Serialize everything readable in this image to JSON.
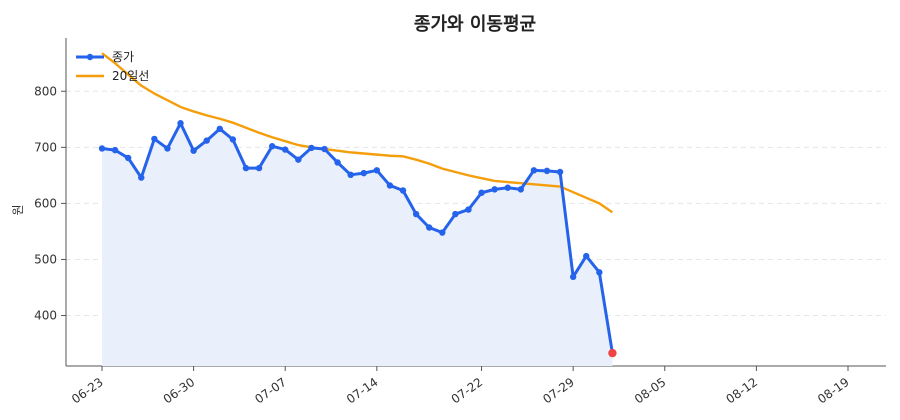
{
  "chart_data": {
    "type": "line",
    "title": "종가와 이동평균",
    "xlabel": "",
    "ylabel": "원",
    "ylim": [
      310,
      895
    ],
    "yticks": [
      400,
      500,
      600,
      700,
      800
    ],
    "x": [
      "06-23",
      "06-24",
      "06-25",
      "06-26",
      "06-27",
      "06-28",
      "06-29",
      "06-30",
      "07-01",
      "07-02",
      "07-03",
      "07-04",
      "07-05",
      "07-06",
      "07-07",
      "07-08",
      "07-09",
      "07-10",
      "07-11",
      "07-12",
      "07-13",
      "07-14",
      "07-15",
      "07-16",
      "07-17",
      "07-18",
      "07-19",
      "07-20",
      "07-21",
      "07-22",
      "07-23",
      "07-24",
      "07-25",
      "07-26",
      "07-27",
      "07-28",
      "07-29",
      "07-30",
      "07-31",
      "08-01",
      "08-02",
      "08-03",
      "08-04",
      "08-05",
      "08-06",
      "08-07",
      "08-08",
      "08-09",
      "08-10",
      "08-11",
      "08-12",
      "08-13",
      "08-14",
      "08-15",
      "08-16",
      "08-17",
      "08-18",
      "08-19"
    ],
    "xticks": [
      "06-23",
      "06-30",
      "07-07",
      "07-14",
      "07-22",
      "07-29",
      "08-05",
      "08-12",
      "08-19"
    ],
    "series": [
      {
        "name": "종가",
        "color": "#2563eb",
        "area_fill": "#e9effb",
        "last_point_color": "#ef4444",
        "points": [
          [
            "06-23",
            698
          ],
          [
            "06-24",
            695
          ],
          [
            "06-25",
            681
          ],
          [
            "06-26",
            646
          ],
          [
            "06-27",
            715
          ],
          [
            "06-28",
            698
          ],
          [
            "06-29",
            743
          ],
          [
            "06-30",
            694
          ],
          [
            "07-01",
            712
          ],
          [
            "07-02",
            733
          ],
          [
            "07-03",
            714
          ],
          [
            "07-04",
            663
          ],
          [
            "07-05",
            663
          ],
          [
            "07-06",
            702
          ],
          [
            "07-07",
            696
          ],
          [
            "07-08",
            678
          ],
          [
            "07-09",
            699
          ],
          [
            "07-10",
            697
          ],
          [
            "07-11",
            673
          ],
          [
            "07-12",
            651
          ],
          [
            "07-13",
            654
          ],
          [
            "07-14",
            659
          ],
          [
            "07-15",
            632
          ],
          [
            "07-16",
            623
          ],
          [
            "07-17",
            581
          ],
          [
            "07-18",
            557
          ],
          [
            "07-19",
            548
          ],
          [
            "07-20",
            581
          ],
          [
            "07-21",
            589
          ],
          [
            "07-22",
            619
          ],
          [
            "07-23",
            625
          ],
          [
            "07-24",
            628
          ],
          [
            "07-25",
            625
          ],
          [
            "07-26",
            659
          ],
          [
            "07-27",
            658
          ],
          [
            "07-28",
            656
          ],
          [
            "07-29",
            469
          ],
          [
            "07-30",
            506
          ],
          [
            "07-31",
            477
          ],
          [
            "08-01",
            333
          ]
        ]
      },
      {
        "name": "20일선",
        "color": "#f59e0b",
        "points": [
          [
            "06-23",
            868
          ],
          [
            "06-24",
            850
          ],
          [
            "06-25",
            830
          ],
          [
            "06-26",
            810
          ],
          [
            "06-27",
            796
          ],
          [
            "06-28",
            784
          ],
          [
            "06-29",
            772
          ],
          [
            "06-30",
            764
          ],
          [
            "07-01",
            757
          ],
          [
            "07-02",
            751
          ],
          [
            "07-03",
            744
          ],
          [
            "07-04",
            735
          ],
          [
            "07-05",
            726
          ],
          [
            "07-06",
            718
          ],
          [
            "07-07",
            711
          ],
          [
            "07-08",
            704
          ],
          [
            "07-09",
            700
          ],
          [
            "07-10",
            697
          ],
          [
            "07-11",
            694
          ],
          [
            "07-12",
            691
          ],
          [
            "07-13",
            689
          ],
          [
            "07-14",
            687
          ],
          [
            "07-15",
            685
          ],
          [
            "07-16",
            684
          ],
          [
            "07-17",
            678
          ],
          [
            "07-18",
            671
          ],
          [
            "07-19",
            662
          ],
          [
            "07-20",
            656
          ],
          [
            "07-21",
            650
          ],
          [
            "07-22",
            645
          ],
          [
            "07-23",
            640
          ],
          [
            "07-24",
            638
          ],
          [
            "07-25",
            636
          ],
          [
            "07-26",
            634
          ],
          [
            "07-27",
            632
          ],
          [
            "07-28",
            630
          ],
          [
            "07-29",
            620
          ],
          [
            "07-30",
            610
          ],
          [
            "07-31",
            600
          ],
          [
            "08-01",
            584
          ]
        ]
      }
    ],
    "legend": {
      "position": "top-left",
      "entries": [
        "종가",
        "20일선"
      ]
    },
    "grid": {
      "y": true,
      "x": false,
      "style": "dashed"
    }
  }
}
